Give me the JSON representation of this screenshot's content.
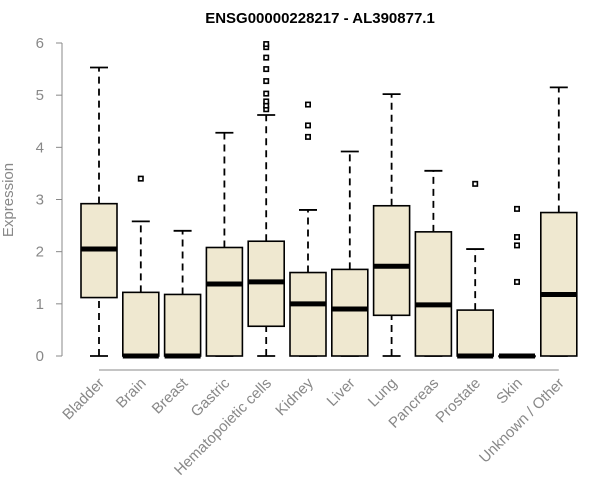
{
  "chart_data": {
    "type": "boxplot",
    "title": "ENSG00000228217 - AL390877.1",
    "xlabel": "",
    "ylabel": "Expression",
    "ylim": [
      0,
      6
    ],
    "yticks": [
      0,
      1,
      2,
      3,
      4,
      5,
      6
    ],
    "grid": false,
    "colors": {
      "box_fill": "#efe8d0",
      "box_stroke": "#000000",
      "axis": "#888888"
    },
    "categories": [
      "Bladder",
      "Brain",
      "Breast",
      "Gastric",
      "Hematopoietic cells",
      "Kidney",
      "Liver",
      "Lung",
      "Pancreas",
      "Prostate",
      "Skin",
      "Unknown / Other"
    ],
    "boxes": [
      {
        "min": 0,
        "q1": 1.12,
        "median": 2.05,
        "q3": 2.92,
        "max": 5.53,
        "outliers": []
      },
      {
        "min": 0,
        "q1": 0,
        "median": 0,
        "q3": 1.22,
        "max": 2.58,
        "outliers": [
          3.4
        ]
      },
      {
        "min": 0,
        "q1": 0,
        "median": 0,
        "q3": 1.18,
        "max": 2.4,
        "outliers": []
      },
      {
        "min": 0,
        "q1": 0,
        "median": 1.38,
        "q3": 2.08,
        "max": 4.28,
        "outliers": []
      },
      {
        "min": 0,
        "q1": 0.57,
        "median": 1.42,
        "q3": 2.2,
        "max": 4.62,
        "outliers": [
          4.73,
          4.8,
          4.88,
          5.03,
          5.27,
          5.5,
          5.72,
          5.92,
          5.98
        ]
      },
      {
        "min": 0,
        "q1": 0,
        "median": 1.0,
        "q3": 1.6,
        "max": 2.8,
        "outliers": [
          4.2,
          4.42,
          4.82
        ]
      },
      {
        "min": 0,
        "q1": 0,
        "median": 0.9,
        "q3": 1.66,
        "max": 3.92,
        "outliers": []
      },
      {
        "min": 0,
        "q1": 0.78,
        "median": 1.72,
        "q3": 2.88,
        "max": 5.02,
        "outliers": []
      },
      {
        "min": 0,
        "q1": 0,
        "median": 0.98,
        "q3": 2.38,
        "max": 3.55,
        "outliers": []
      },
      {
        "min": 0,
        "q1": 0,
        "median": 0,
        "q3": 0.88,
        "max": 2.05,
        "outliers": [
          3.3
        ]
      },
      {
        "min": 0,
        "q1": 0,
        "median": 0,
        "q3": 0,
        "max": 0,
        "outliers": [
          1.42,
          2.12,
          2.28,
          2.82
        ]
      },
      {
        "min": 0,
        "q1": 0,
        "median": 1.18,
        "q3": 2.75,
        "max": 5.15,
        "outliers": []
      }
    ]
  }
}
